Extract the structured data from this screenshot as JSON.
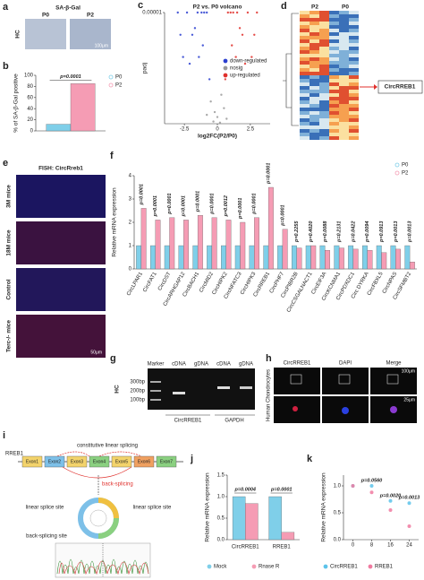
{
  "panels": {
    "a": {
      "label": "a",
      "title": "SA-β-Gal",
      "columns": [
        "P0",
        "P2"
      ],
      "row": "HC",
      "scale": "100μm"
    },
    "d": {
      "label": "d",
      "columns": [
        "P2",
        "P0"
      ],
      "highlight": "CircRREB1"
    },
    "e": {
      "label": "e",
      "title": "FISH: CircRreb1",
      "rows": [
        "3M mice",
        "18M mice",
        "Control",
        "Terc-/- mice"
      ],
      "scale": "50μm"
    },
    "g": {
      "label": "g",
      "lanes": [
        "Marker",
        "cDNA",
        "gDNA",
        "cDNA",
        "gDNA"
      ],
      "ladder": [
        "300bp",
        "200bp",
        "100bp"
      ],
      "row": "HC",
      "groups": [
        "CircRREB1",
        "GAPDH"
      ]
    },
    "h": {
      "label": "h",
      "columns": [
        "CircRREB1",
        "DAPI",
        "Merge"
      ],
      "row": "Human Chondrocytes",
      "scales": [
        "100μm",
        "25μm"
      ]
    },
    "i": {
      "label": "i",
      "gene": "RREB1",
      "linear": "constitutive linear splicing",
      "exons": [
        "Exon1",
        "Exon2",
        "Exon3",
        "Exon4",
        "Exon5",
        "Exon6",
        "Exon7"
      ],
      "back": "back-splicing",
      "splice_sites": [
        "linear splice site",
        "linear splice site"
      ],
      "back_site": "back-splicing site"
    }
  },
  "chart_data": [
    {
      "panel": "b",
      "type": "bar",
      "ylabel": "% of SA-β-Gal positive",
      "ylim": [
        0,
        100
      ],
      "yticks": [
        0,
        20,
        40,
        60,
        80,
        100
      ],
      "series": [
        {
          "name": "P0",
          "color": "#7fcfe9",
          "values": [
            12
          ]
        },
        {
          "name": "P2",
          "color": "#f59cb4",
          "values": [
            85
          ]
        }
      ],
      "p_values": [
        "p=0.0001"
      ],
      "legend": "right"
    },
    {
      "panel": "c",
      "type": "scatter",
      "title": "P2 vs. P0 volcano",
      "xlabel": "log2FC(P2/P0)",
      "ylabel": "padj",
      "log_y": true,
      "xlim": [
        -4,
        4
      ],
      "xticks": [
        -2.5,
        0,
        2.5
      ],
      "ylim": [
        1,
        1e-05
      ],
      "yticks": [
        1e-05
      ],
      "legend": "middle-right",
      "series": [
        {
          "name": "down-regulated",
          "color": "#2b3fd0",
          "x": [
            -0.8,
            -1.2,
            -1.5,
            -1.9,
            -2.3,
            -2.6,
            -3.0,
            -1.1,
            -1.7,
            -2.1,
            -0.6,
            -1.4,
            -2.8,
            -1.0
          ],
          "y": [
            1e-05,
            1e-05,
            1e-05,
            0.0001,
            1e-05,
            0.001,
            1e-05,
            0.0003,
            5e-05,
            0.002,
            0.01,
            0.001,
            0.0001,
            1e-05
          ]
        },
        {
          "name": "nosig",
          "color": "#9a9a9a",
          "x": [
            -0.5,
            -0.2,
            0,
            0.3,
            0.5,
            -0.8,
            0.7,
            -0.3,
            0.2
          ],
          "y": [
            0.1,
            0.3,
            0.5,
            0.05,
            0.2,
            0.4,
            0.6,
            0.8,
            0.9
          ]
        },
        {
          "name": "up-regulated",
          "color": "#e0302c",
          "x": [
            0.8,
            1.2,
            1.5,
            1.9,
            2.3,
            2.6,
            3.0,
            1.1,
            1.7,
            2.1,
            0.6,
            1.4,
            2.8,
            1.0
          ],
          "y": [
            1e-05,
            1e-05,
            1e-05,
            0.0001,
            1e-05,
            0.001,
            1e-05,
            0.0003,
            5e-05,
            0.002,
            0.01,
            0.001,
            0.0001,
            1e-05
          ]
        }
      ]
    },
    {
      "panel": "f",
      "type": "bar",
      "ylabel": "Relative mRNA expression",
      "ylim": [
        0,
        4
      ],
      "yticks": [
        0,
        1,
        2,
        3,
        4
      ],
      "legend": "top-right",
      "categories": [
        "CircLPAR1",
        "CircFAT1",
        "CircDST",
        "CircARHGAP12",
        "CircBACH1",
        "CircMID2",
        "CircHIPK2",
        "CircNFATC3",
        "CircHIPK3",
        "CircRREB1",
        "CircPHF7",
        "CircPIBR2B",
        "CircCSGALNACT1",
        "CircEIF3A",
        "CircKCNMA1",
        "CircPDXDC1",
        "Circ DYRKA",
        "CircFBXL5",
        "CircNPAS",
        "CircSFMBT2"
      ],
      "series": [
        {
          "name": "P0",
          "color": "#7fcfe9",
          "values": [
            1,
            1,
            1,
            1,
            1,
            1,
            1,
            1,
            1,
            1,
            1,
            1,
            1,
            1,
            1,
            1,
            1,
            1,
            1,
            1
          ]
        },
        {
          "name": "P2",
          "color": "#f59cb4",
          "values": [
            2.6,
            2.1,
            2.2,
            2.1,
            2.3,
            2.2,
            2.1,
            2.0,
            2.2,
            3.5,
            1.7,
            0.9,
            1.0,
            0.8,
            0.9,
            0.85,
            0.8,
            0.7,
            0.85,
            0.3
          ]
        }
      ],
      "p_values": [
        "p=0.0001",
        "p=0.0001",
        "p=0.0001",
        "p=0.0001",
        "p=0.0001",
        "p=0.0001",
        "p=0.0012",
        "p=0.0001",
        "p=0.0001",
        "p=0.0001",
        "p=0.0001",
        "p=0.2255",
        "p=0.4020",
        "p=0.0088",
        "p=0.2131",
        "p=0.0422",
        "p=0.0094",
        "p=0.0913",
        "p=0.0013",
        "p=0.0013"
      ]
    },
    {
      "panel": "j",
      "type": "bar",
      "ylabel": "Relative mRNA expression",
      "ylim": [
        0,
        1.5
      ],
      "yticks": [
        {
          "value": 0,
          "label": "0.0"
        },
        0.5,
        {
          "value": 1,
          "label": "1.0"
        },
        1.5
      ],
      "legend": "bottom",
      "categories": [
        "CircRREB1",
        "RREB1"
      ],
      "series": [
        {
          "name": "Mock",
          "color": "#7fcfe9",
          "values": [
            1,
            1
          ]
        },
        {
          "name": "Rnase R",
          "color": "#f59cb4",
          "values": [
            0.84,
            0.17
          ]
        }
      ],
      "p_values": [
        "p=0.0004",
        "p=0.0001"
      ]
    },
    {
      "panel": "k",
      "type": "scatter",
      "ylabel": "Relative mRNA expression",
      "xlim": [
        -4,
        28
      ],
      "xticks": [
        0,
        8,
        16,
        24
      ],
      "ylim": [
        0,
        1.2
      ],
      "yticks": [
        {
          "value": 0,
          "label": "0.0"
        },
        0.5,
        {
          "value": 1,
          "label": "1.0"
        }
      ],
      "legend": "bottom",
      "x": [
        0,
        8,
        16,
        24
      ],
      "series": [
        {
          "name": "CircRREB1",
          "color": "#5cc3ea",
          "y": [
            1,
            1,
            0.72,
            0.68
          ]
        },
        {
          "name": "RREB1",
          "color": "#f07aa0",
          "y": [
            1,
            0.88,
            0.55,
            0.25
          ]
        }
      ],
      "p_values": [
        null,
        "p=0.0560",
        "p=0.0020",
        "p=0.0013"
      ]
    }
  ]
}
